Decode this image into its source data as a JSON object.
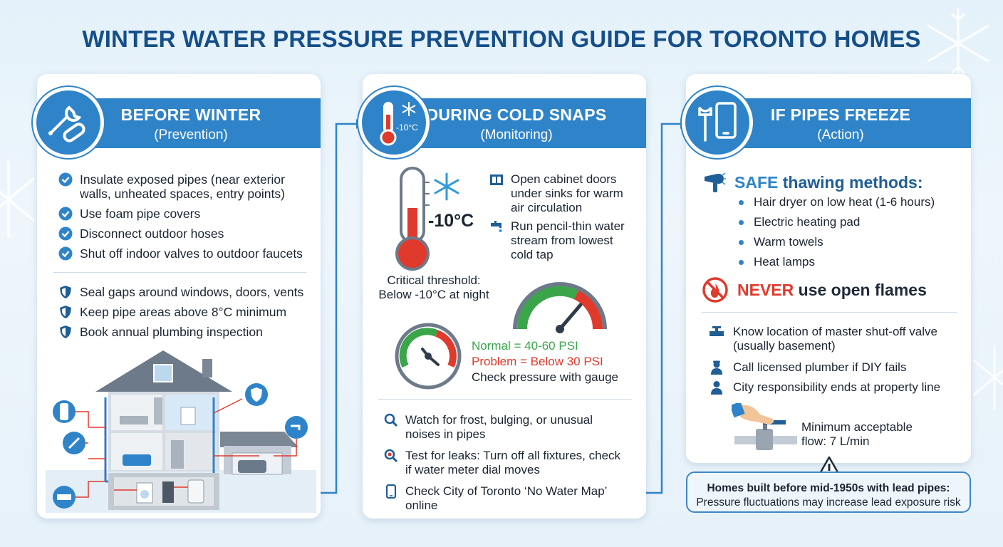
{
  "title": "WINTER WATER PRESSURE PREVENTION GUIDE FOR TORONTO HOMES",
  "colors": {
    "primary_blue": "#2f84c9",
    "title_blue": "#154f8a",
    "green": "#3aa549",
    "red": "#e03a2c"
  },
  "before": {
    "heading": "BEFORE WINTER",
    "subheading": "(Prevention)",
    "checks": [
      "Insulate exposed pipes (near exterior",
      "walls, unheated spaces, entry points)",
      "Use foam pipe covers",
      "Disconnect outdoor hoses",
      "Shut off indoor valves to outdoor faucets"
    ],
    "shields": [
      "Seal gaps around windows, doors, vents",
      "Keep pipe areas above 8°C minimum",
      "Book annual plumbing inspection"
    ]
  },
  "during": {
    "heading": "DURING COLD SNAPS",
    "subheading": "(Monitoring)",
    "icon_temp": "-10°C",
    "temp_label": "-10°C",
    "threshold_line1": "Critical threshold:",
    "threshold_line2": "Below -10°C at night",
    "cabinet_lines": [
      "Open cabinet doors",
      "under sinks for warm",
      "air circulation"
    ],
    "tap_lines": [
      "Run pencil-thin water",
      "stream from lowest",
      "cold tap"
    ],
    "normal_psi": "Normal = 40-60 PSI",
    "problem_psi": "Problem = Below 30 PSI",
    "check_gauge": "Check pressure with gauge",
    "frost_lines": [
      "Watch for frost, bulging, or unusual",
      "noises in pipes"
    ],
    "leak_lines": [
      "Test for leaks: Turn off all fixtures, check",
      "if water meter dial moves"
    ],
    "map_lines": [
      "Check City of Toronto ‘No Water Map’",
      "online"
    ]
  },
  "freeze": {
    "heading": "IF PIPES FREEZE",
    "subheading": "(Action)",
    "safe_word": "SAFE",
    "safe_rest": " thawing methods:",
    "methods": [
      "Hair dryer on low heat (1-6 hours)",
      "Electric heating pad",
      "Warm towels",
      "Heat lamps"
    ],
    "never_word": "NEVER",
    "never_rest": " use open flames",
    "valve_lines": [
      "Know location of master shut-off valve",
      "(usually basement)"
    ],
    "plumber": "Call licensed plumber if DIY fails",
    "city": "City responsibility ends at property line",
    "flow_line1": "Minimum acceptable",
    "flow_line2": "flow: 7 L/min"
  },
  "warning": {
    "line1": "Homes built before mid-1950s with lead pipes:",
    "line2": "Pressure fluctuations may increase lead exposure risk"
  }
}
